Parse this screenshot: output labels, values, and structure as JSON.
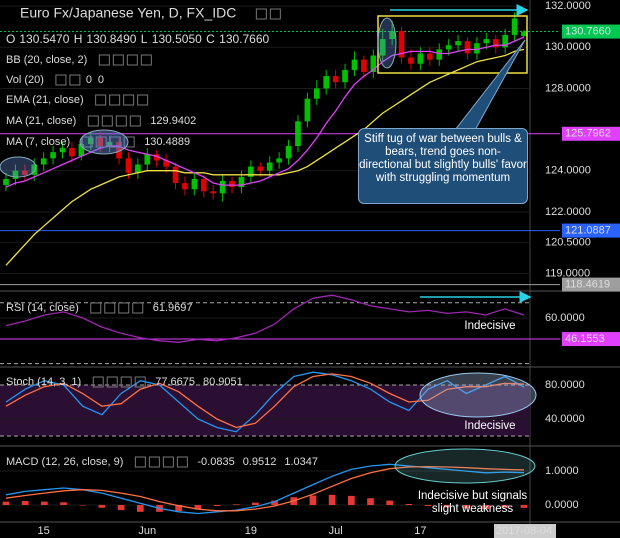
{
  "chart_data": [
    {
      "type": "candlestick",
      "title": "Euro Fx/Japanese Yen, D, FX_IDC",
      "header": [
        "O",
        "130.5470",
        "H",
        "130.8490",
        "L",
        "130.5050",
        "C",
        "130.7660"
      ],
      "indicators": [
        "BB (20, close, 2)",
        "Vol (20)",
        "EMA (21, close)"
      ],
      "vol_values": [
        "0",
        "0"
      ],
      "categories": [
        null,
        null,
        null,
        null,
        "15",
        null,
        null,
        null,
        null,
        null,
        null,
        null,
        null,
        null,
        null,
        "Jun",
        null,
        null,
        null,
        null,
        null,
        null,
        null,
        null,
        null,
        null,
        "19",
        null,
        null,
        null,
        null,
        null,
        null,
        null,
        null,
        "Jul",
        null,
        null,
        null,
        null,
        null,
        null,
        null,
        null,
        "17",
        null,
        null,
        null,
        null,
        null,
        null,
        null,
        null,
        "A",
        null,
        "2017-08-04"
      ],
      "open": [
        123.3,
        123.6,
        124.0,
        123.8,
        124.3,
        124.6,
        124.9,
        125.1,
        124.7,
        125.3,
        125.6,
        125.2,
        125.4,
        124.6,
        123.9,
        124.3,
        124.8,
        124.5,
        124.2,
        123.4,
        123.1,
        123.6,
        123.0,
        122.9,
        123.5,
        123.2,
        123.7,
        124.2,
        124.0,
        124.4,
        124.6,
        125.2,
        126.4,
        127.5,
        128.0,
        128.6,
        128.3,
        128.9,
        129.4,
        128.8,
        129.6,
        130.4,
        130.8,
        129.5,
        129.2,
        129.7,
        129.4,
        129.9,
        130.1,
        130.3,
        129.7,
        130.2,
        130.4,
        130.0,
        130.6,
        130.547
      ],
      "high": [
        123.9,
        124.3,
        124.3,
        124.6,
        124.9,
        125.2,
        125.4,
        125.4,
        125.6,
        125.9,
        125.9,
        125.7,
        125.6,
        124.9,
        124.6,
        125.1,
        125.0,
        124.8,
        124.4,
        123.7,
        123.9,
        123.8,
        123.3,
        123.8,
        123.7,
        124.0,
        124.5,
        124.4,
        124.7,
        124.9,
        125.5,
        126.7,
        127.8,
        128.4,
        128.9,
        128.9,
        129.2,
        129.8,
        129.6,
        129.9,
        130.9,
        131.3,
        131.0,
        129.9,
        130.0,
        130.0,
        130.2,
        130.4,
        130.6,
        130.5,
        130.5,
        130.7,
        130.6,
        130.9,
        131.7,
        130.849
      ],
      "low": [
        123.0,
        123.3,
        123.5,
        123.5,
        124.0,
        124.3,
        124.6,
        124.4,
        124.5,
        125.0,
        124.9,
        124.9,
        124.3,
        123.6,
        123.6,
        124.0,
        124.2,
        123.9,
        123.1,
        122.8,
        122.8,
        122.7,
        122.6,
        122.5,
        122.9,
        122.9,
        123.4,
        123.7,
        123.7,
        124.1,
        124.3,
        124.9,
        126.1,
        127.2,
        127.7,
        128.0,
        128.0,
        128.6,
        128.5,
        128.5,
        129.3,
        130.1,
        129.2,
        128.9,
        128.9,
        129.1,
        129.1,
        129.6,
        129.8,
        129.4,
        129.4,
        129.9,
        129.7,
        129.7,
        130.3,
        130.505
      ],
      "close": [
        123.6,
        124.0,
        123.8,
        124.3,
        124.6,
        124.9,
        125.1,
        124.7,
        125.3,
        125.6,
        125.2,
        125.4,
        124.6,
        123.9,
        124.3,
        124.8,
        124.5,
        124.2,
        123.4,
        123.1,
        123.6,
        123.0,
        122.9,
        123.5,
        123.2,
        123.7,
        124.2,
        124.0,
        124.4,
        124.6,
        125.2,
        126.4,
        127.5,
        128.0,
        128.6,
        128.3,
        128.9,
        129.4,
        128.8,
        129.6,
        130.4,
        130.8,
        129.5,
        129.2,
        129.7,
        129.4,
        129.9,
        130.1,
        130.3,
        129.7,
        130.2,
        130.4,
        130.0,
        130.6,
        131.4,
        130.766
      ],
      "up_color": "#00c000",
      "down_color": "#e00000",
      "series": [
        {
          "name": "MA (21, close)",
          "color": "#f0e040",
          "last": "129.9402",
          "values": [
            119.4,
            119.9,
            120.4,
            120.9,
            121.3,
            121.7,
            122.1,
            122.5,
            122.8,
            123.1,
            123.3,
            123.5,
            123.7,
            123.8,
            123.9,
            124.0,
            124.0,
            124.0,
            124.0,
            123.9,
            123.9,
            123.9,
            123.8,
            123.8,
            123.8,
            123.8,
            123.8,
            123.8,
            123.8,
            123.8,
            123.9,
            124.0,
            124.2,
            124.5,
            124.8,
            125.1,
            125.4,
            125.7,
            126.0,
            126.4,
            126.8,
            127.1,
            127.4,
            127.7,
            128.0,
            128.3,
            128.5,
            128.7,
            128.9,
            129.1,
            129.3,
            129.4,
            129.5,
            129.6,
            129.8,
            129.9
          ]
        },
        {
          "name": "MA (7, close)",
          "color": "#e040fb",
          "last": "130.4889",
          "values": [
            123.2,
            123.4,
            123.5,
            123.7,
            123.9,
            124.1,
            124.3,
            124.5,
            124.7,
            124.9,
            125.1,
            125.2,
            125.2,
            125.0,
            124.9,
            124.8,
            124.7,
            124.5,
            124.3,
            124.1,
            123.9,
            123.7,
            123.4,
            123.3,
            123.3,
            123.3,
            123.4,
            123.5,
            123.7,
            123.9,
            124.1,
            124.5,
            125.0,
            125.6,
            126.3,
            126.9,
            127.6,
            128.2,
            128.6,
            128.9,
            129.3,
            129.6,
            129.7,
            129.8,
            129.8,
            129.8,
            129.7,
            129.7,
            129.8,
            129.9,
            129.9,
            130.0,
            130.1,
            130.1,
            130.3,
            130.5
          ]
        }
      ],
      "ylim": [
        118.2,
        132.3
      ],
      "yticks": [
        {
          "value": 132,
          "label": "132.0000"
        },
        {
          "value": 130,
          "label": "130.0000"
        },
        {
          "value": 128,
          "label": "128.0000"
        },
        {
          "value": 124,
          "label": "124.0000"
        },
        {
          "value": 122,
          "label": "122.0000"
        },
        {
          "value": 120.5,
          "label": "120.5000"
        },
        {
          "value": 119,
          "label": "119.0000"
        }
      ],
      "price_lines": [
        {
          "value": 130.766,
          "label": "130.7660",
          "color": "#00c853"
        },
        {
          "value": 125.7962,
          "label": "125.7962",
          "color": "#e040fb"
        },
        {
          "value": 121.0887,
          "label": "121.0887",
          "color": "#2962ff"
        },
        {
          "value": 118.4619,
          "label": "118.4619",
          "color": "#9e9e9e"
        }
      ],
      "annotation": "Stiff tug of war between bulls & bears, trend goes non-directional but slightly bulls' favor with struggling momentum"
    },
    {
      "type": "line",
      "title": "RSI (14, close)",
      "series": [
        {
          "color": "#9c27b0",
          "last": "61.9697",
          "values": [
            55,
            58,
            62,
            64,
            60,
            54,
            50,
            47,
            45,
            44,
            46,
            45,
            47,
            50,
            56,
            66,
            73,
            75,
            72,
            68,
            66,
            64,
            65,
            63,
            64,
            62,
            66,
            61.9697
          ]
        }
      ],
      "ylim": [
        29.1,
        77.1
      ],
      "yticks": [
        {
          "value": 60,
          "label": "60.0000"
        }
      ],
      "levels": [
        70,
        30
      ],
      "price_lines": [
        {
          "value": 46.1553,
          "label": "46.1553",
          "color": "#e040fb"
        }
      ],
      "annotation": "Indecisive"
    },
    {
      "type": "line",
      "title": "Stoch (14, 3, 1)",
      "series": [
        {
          "color": "#2196f3",
          "last": "77.6675",
          "values": [
            60,
            75,
            85,
            80,
            55,
            45,
            70,
            85,
            80,
            60,
            40,
            30,
            25,
            45,
            70,
            90,
            95,
            92,
            85,
            75,
            60,
            50,
            75,
            85,
            70,
            80,
            90,
            77.6675
          ]
        },
        {
          "color": "#ff7043",
          "last": "80.9051",
          "values": [
            55,
            68,
            78,
            82,
            70,
            55,
            58,
            75,
            82,
            72,
            55,
            40,
            30,
            35,
            55,
            78,
            90,
            93,
            90,
            82,
            70,
            60,
            62,
            75,
            78,
            78,
            82,
            80.9051
          ]
        }
      ],
      "ylim": [
        15.3,
        97.6
      ],
      "yticks": [
        {
          "value": 80,
          "label": "80.0000"
        },
        {
          "value": 40,
          "label": "40.0000"
        }
      ],
      "levels": [
        80,
        20
      ],
      "band_color": "#2a0f33",
      "annotation": "Indecisive"
    },
    {
      "type": "line",
      "title": "MACD (12, 26, close, 9)",
      "histogram": {
        "color": "#e53935",
        "last": "-0.0835",
        "values": [
          0.1,
          0.12,
          0.1,
          0.08,
          0,
          -0.08,
          -0.15,
          -0.2,
          -0.2,
          -0.18,
          -0.13,
          -0.03,
          0.02,
          0.07,
          0.13,
          0.23,
          0.28,
          0.3,
          0.27,
          0.2,
          0.13,
          0.03,
          -0.03,
          -0.07,
          -0.1,
          -0.12,
          -0.08,
          -0.0835
        ]
      },
      "series": [
        {
          "color": "#2196f3",
          "last": "0.9512",
          "values": [
            0.3,
            0.4,
            0.45,
            0.5,
            0.45,
            0.35,
            0.2,
            0.05,
            -0.1,
            -0.2,
            -0.25,
            -0.2,
            -0.15,
            -0.05,
            0.1,
            0.35,
            0.6,
            0.85,
            1.05,
            1.15,
            1.2,
            1.15,
            1.1,
            1.05,
            1.0,
            0.95,
            0.97,
            0.9512
          ]
        },
        {
          "color": "#ff7043",
          "last": "1.0347",
          "values": [
            0.2,
            0.28,
            0.35,
            0.42,
            0.45,
            0.43,
            0.35,
            0.25,
            0.1,
            -0.02,
            -0.12,
            -0.17,
            -0.17,
            -0.12,
            -0.03,
            0.12,
            0.32,
            0.55,
            0.78,
            0.95,
            1.07,
            1.12,
            1.13,
            1.12,
            1.1,
            1.07,
            1.05,
            1.0347
          ]
        }
      ],
      "ylim": [
        -0.5,
        1.62
      ],
      "yticks": [
        {
          "value": 1,
          "label": "1.0000"
        },
        {
          "value": 0,
          "label": "0.0000"
        }
      ],
      "annotation": "Indecisive but signals slight weakness"
    }
  ]
}
